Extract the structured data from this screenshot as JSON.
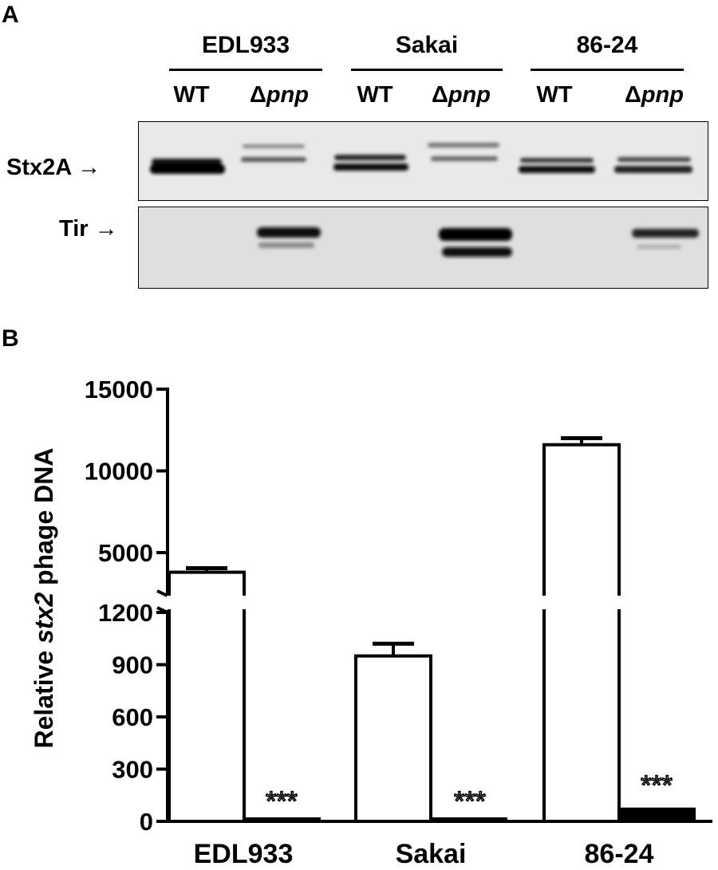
{
  "panel_a": {
    "letter": "A",
    "strains": [
      "EDL933",
      "Sakai",
      "86-24"
    ],
    "lane_labels": [
      {
        "prefix": "WT",
        "italic": ""
      },
      {
        "prefix": "Δ",
        "italic": "pnp"
      },
      {
        "prefix": "WT",
        "italic": ""
      },
      {
        "prefix": "Δ",
        "italic": "pnp"
      },
      {
        "prefix": "WT",
        "italic": ""
      },
      {
        "prefix": "Δ",
        "italic": "pnp"
      }
    ],
    "blots": [
      {
        "label": "Stx2A →",
        "intensity": [
          1.0,
          0.35,
          0.9,
          0.4,
          0.85,
          0.7
        ]
      },
      {
        "label": "Tir →",
        "intensity": [
          0.0,
          1.0,
          0.0,
          1.0,
          0.0,
          0.75
        ]
      }
    ]
  },
  "panel_b": {
    "letter": "B",
    "chart_data": {
      "type": "bar",
      "categories": [
        "EDL933",
        "Sakai",
        "86-24"
      ],
      "series": [
        {
          "name": "WT",
          "fill": "#ffffff",
          "values": [
            3800,
            950,
            11600
          ],
          "errors": [
            250,
            70,
            400
          ]
        },
        {
          "name": "Δpnp",
          "fill": "#000000",
          "values": [
            5,
            5,
            70
          ],
          "errors": [
            0,
            0,
            0
          ]
        }
      ],
      "significance": [
        "***",
        "***",
        "***"
      ],
      "ylabel_prefix": "Relative ",
      "ylabel_italic": "stx2",
      "ylabel_suffix": " phage DNA",
      "y_lower_ticks": [
        "0",
        "300",
        "600",
        "900",
        "1200"
      ],
      "y_upper_ticks": [
        "5000",
        "10000",
        "15000"
      ],
      "y_lower_range": [
        0,
        1200
      ],
      "y_upper_range": [
        3000,
        15000
      ],
      "axis_break": true
    }
  }
}
